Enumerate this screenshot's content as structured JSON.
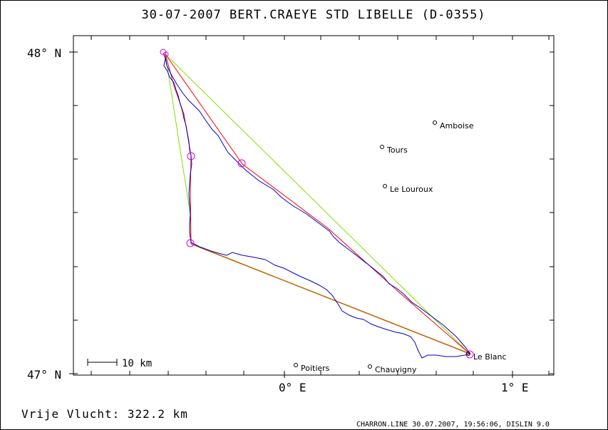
{
  "title": "30-07-2007   BERT.CRAEYE   STD LIBELLE (D-0355)",
  "axes": {
    "lat_top": "48° N",
    "lat_bottom": "47° N",
    "lon_0": "0° E",
    "lon_1": "1° E"
  },
  "scale_bar": "10 km",
  "cities": [
    {
      "name": "Amboise",
      "lon": 0.63,
      "lat": 47.72
    },
    {
      "name": "Tours",
      "lon": 0.42,
      "lat": 47.65
    },
    {
      "name": "Le Louroux",
      "lon": 0.43,
      "lat": 47.53
    },
    {
      "name": "Poitiers",
      "lon": 0.0,
      "lat": 47.03
    },
    {
      "name": "Chauvigny",
      "lon": 0.36,
      "lat": 47.03
    },
    {
      "name": "Le Blanc",
      "lon": 0.79,
      "lat": 47.06
    }
  ],
  "footer": {
    "distance": "Vrije Vlucht:  322.2 km",
    "credit": "CHARRON.LINE 30.07.2007, 19:56:06, DISLIN 9.0"
  },
  "colors": {
    "track": "#0000cc",
    "task": "#ff0000",
    "leg": "#c06000",
    "closing": "#80e000",
    "turnpoint": "#e000e0"
  },
  "chart_data": {
    "type": "map-track",
    "lon_range": [
      -0.92,
      1.12
    ],
    "lat_range": [
      46.99,
      48.06
    ],
    "turnpoints": [
      {
        "lon": -0.53,
        "lat": 47.99
      },
      {
        "lon": -0.41,
        "lat": 47.68
      },
      {
        "lon": -0.42,
        "lat": 47.41
      },
      {
        "lon": 0.79,
        "lat": 47.06
      },
      {
        "lon": -0.19,
        "lat": 47.66
      },
      {
        "lon": -0.52,
        "lat": 47.99
      }
    ]
  }
}
